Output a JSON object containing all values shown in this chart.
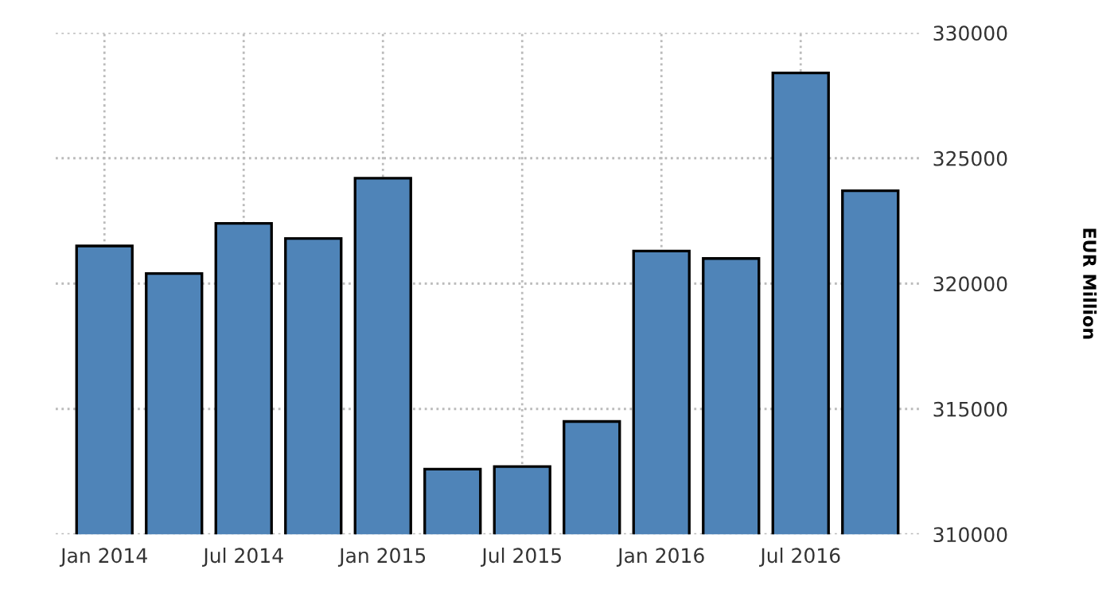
{
  "chart_data": {
    "type": "bar",
    "ylabel": "EUR Million",
    "categories": [
      "Jan 2014",
      null,
      "Jul 2014",
      null,
      "Jan 2015",
      null,
      "Jul 2015",
      null,
      "Jan 2016",
      null,
      "Jul 2016",
      null
    ],
    "values": [
      321500,
      320400,
      322400,
      321800,
      324200,
      312600,
      312700,
      314500,
      321300,
      321000,
      328400,
      323700
    ],
    "color": "#4f84b8",
    "ylim": [
      310000,
      330000
    ],
    "yticks": [
      310000,
      315000,
      320000,
      325000,
      330000
    ],
    "grid": true
  }
}
